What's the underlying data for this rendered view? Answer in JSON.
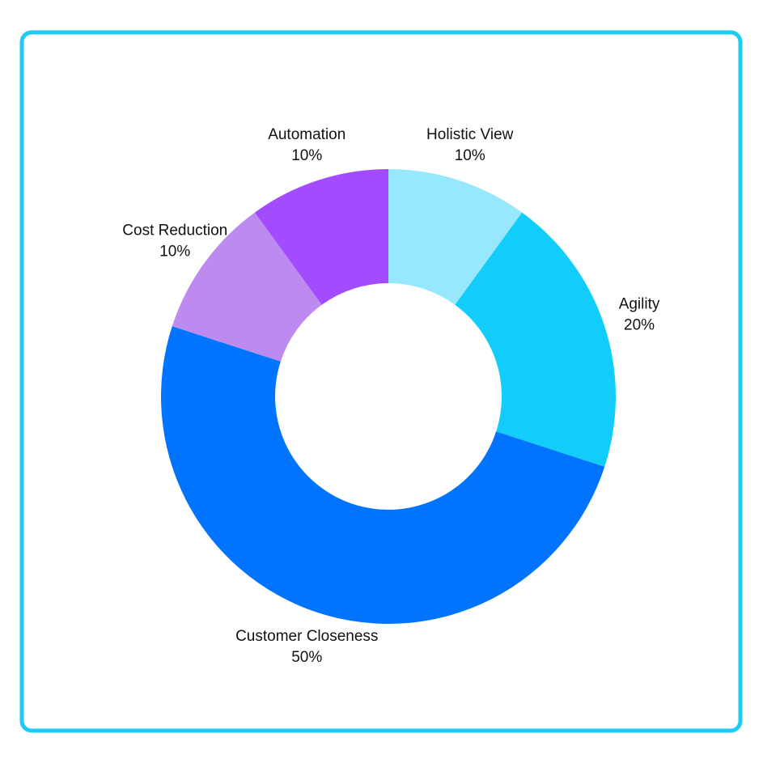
{
  "chart_data": {
    "type": "donut",
    "categories": [
      "Holistic View",
      "Agility",
      "Customer Closeness",
      "Cost Reduction",
      "Automation"
    ],
    "values": [
      10,
      20,
      50,
      10,
      10
    ],
    "value_labels": [
      "10%",
      "20%",
      "50%",
      "10%",
      "10%"
    ],
    "colors": [
      "#98e8fd",
      "#12cdfb",
      "#0074ff",
      "#bd8bf0",
      "#a24bff"
    ]
  }
}
